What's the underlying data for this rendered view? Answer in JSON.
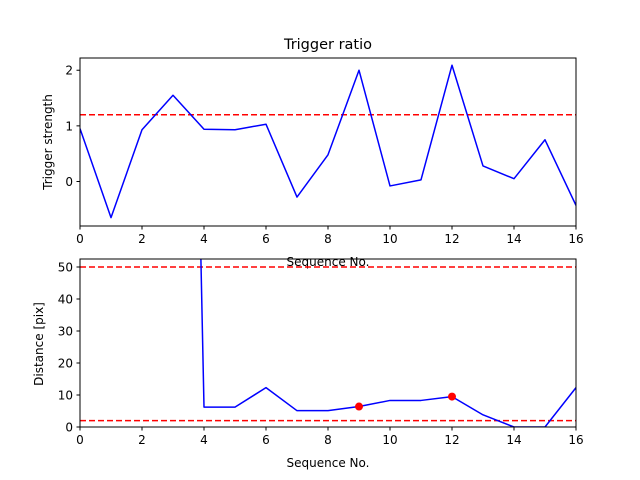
{
  "chart_data": [
    {
      "type": "line",
      "title": "Trigger ratio",
      "xlabel": "Sequence No.",
      "ylabel": "Trigger strength",
      "xlim": [
        0,
        16
      ],
      "ylim": [
        -0.8,
        2.22
      ],
      "xticks": [
        "0",
        "2",
        "4",
        "6",
        "8",
        "10",
        "12",
        "14",
        "16"
      ],
      "yticks": [
        "0",
        "1",
        "2"
      ],
      "series": [
        {
          "color": "#0000ff",
          "x": [
            0,
            1,
            2,
            3,
            4,
            5,
            6,
            7,
            8,
            9,
            10,
            11,
            12,
            13,
            14,
            15,
            16
          ],
          "y": [
            0.95,
            -0.65,
            0.93,
            1.55,
            0.94,
            0.93,
            1.03,
            -0.28,
            0.48,
            2.0,
            -0.08,
            0.03,
            2.09,
            0.28,
            0.05,
            0.75,
            -0.43
          ]
        }
      ],
      "reference_lines": [
        {
          "axis": "y",
          "value": 1.2,
          "color": "#ff0000",
          "style": "dashed"
        }
      ],
      "grid": false
    },
    {
      "type": "line",
      "title": "",
      "xlabel": "Sequence No.",
      "ylabel": "Distance [pix]",
      "xlim": [
        0,
        16
      ],
      "ylim": [
        0,
        52.5
      ],
      "xticks": [
        "0",
        "2",
        "4",
        "6",
        "8",
        "10",
        "12",
        "14",
        "16"
      ],
      "yticks": [
        "0",
        "10",
        "20",
        "30",
        "40",
        "50"
      ],
      "series": [
        {
          "color": "#0000ff",
          "x": [
            3.9,
            4,
            5,
            6,
            7,
            8,
            9,
            10,
            11,
            12,
            13,
            14,
            15,
            16
          ],
          "y": [
            52.5,
            6.2,
            6.2,
            12.3,
            5.1,
            5.1,
            6.4,
            8.3,
            8.3,
            9.5,
            3.8,
            0,
            0,
            12.3
          ]
        }
      ],
      "markers": [
        {
          "x": 9,
          "y": 6.4,
          "color": "#ff0000"
        },
        {
          "x": 12,
          "y": 9.5,
          "color": "#ff0000"
        }
      ],
      "reference_lines": [
        {
          "axis": "y",
          "value": 50,
          "color": "#ff0000",
          "style": "dashed"
        },
        {
          "axis": "y",
          "value": 2,
          "color": "#ff0000",
          "style": "dashed"
        }
      ],
      "grid": false
    }
  ]
}
